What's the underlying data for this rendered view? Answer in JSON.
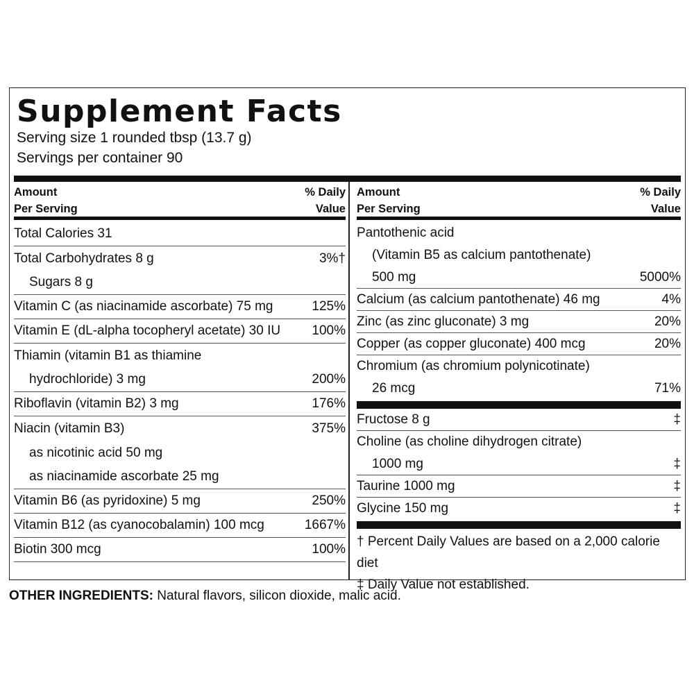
{
  "title": "Supplement Facts",
  "serving_size": "Serving size 1 rounded tbsp (13.7 g)",
  "servings_per_container": "Servings per container 90",
  "header": {
    "amount_line1": "Amount",
    "amount_line2": "Per Serving",
    "dv_line1": "% Daily",
    "dv_line2": "Value"
  },
  "left_rows": [
    {
      "label": "Total Calories  31",
      "value": ""
    },
    {
      "label": "Total Carbohydrates 8 g",
      "value": "3%†"
    },
    {
      "label": "Sugars  8 g",
      "value": ""
    },
    {
      "label": "Vitamin C (as niacinamide ascorbate) 75 mg",
      "value": "125%"
    },
    {
      "label": "Vitamin E (dL-alpha tocopheryl acetate) 30 IU",
      "value": "100%"
    },
    {
      "label": "Thiamin (vitamin B1 as thiamine",
      "value": ""
    },
    {
      "label": "hydrochloride) 3 mg",
      "value": "200%"
    },
    {
      "label": "Riboflavin (vitamin B2) 3 mg",
      "value": "176%"
    },
    {
      "label": "Niacin (vitamin B3)",
      "value": "375%"
    },
    {
      "label": "as nicotinic acid 50 mg",
      "value": ""
    },
    {
      "label": "as niacinamide ascorbate 25 mg",
      "value": ""
    },
    {
      "label": "Vitamin B6 (as pyridoxine) 5 mg",
      "value": "250%"
    },
    {
      "label": "Vitamin B12 (as cyanocobalamin) 100 mcg",
      "value": "1667%"
    },
    {
      "label": "Biotin 300 mcg",
      "value": "100%"
    }
  ],
  "right_rows": [
    {
      "label": "Pantothenic acid",
      "value": ""
    },
    {
      "label": "(Vitamin B5 as calcium pantothenate)",
      "value": ""
    },
    {
      "label": "500 mg",
      "value": "5000%"
    },
    {
      "label": "Calcium (as calcium pantothenate) 46 mg",
      "value": "4%"
    },
    {
      "label": "Zinc (as zinc gluconate) 3 mg",
      "value": "20%"
    },
    {
      "label": "Copper (as copper gluconate) 400 mcg",
      "value": "20%"
    },
    {
      "label": "Chromium (as chromium polynicotinate)",
      "value": ""
    },
    {
      "label": "26 mcg",
      "value": "71%"
    }
  ],
  "right_rows_2": [
    {
      "label": "Fructose 8 g",
      "value": "‡"
    },
    {
      "label": "Choline (as choline dihydrogen citrate)",
      "value": ""
    },
    {
      "label": "1000 mg",
      "value": "‡"
    },
    {
      "label": "Taurine 1000 mg",
      "value": "‡"
    },
    {
      "label": "Glycine 150 mg",
      "value": "‡"
    }
  ],
  "footnotes": {
    "dagger": "† Percent Daily Values are based on a 2,000 calorie diet",
    "double_dagger": "‡ Daily Value not established."
  },
  "other_ingredients": {
    "label": "OTHER INGREDIENTS:",
    "text": " Natural flavors, silicon dioxide, malic acid."
  }
}
